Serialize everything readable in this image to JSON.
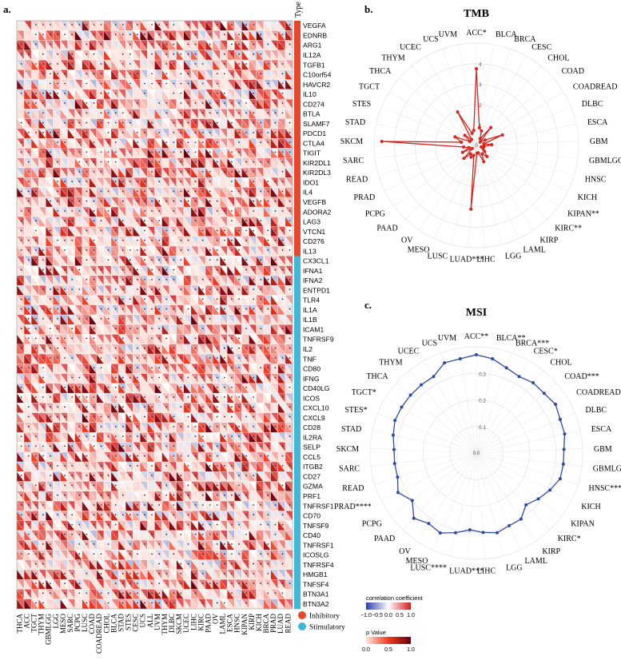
{
  "panel_labels": {
    "a": "a.",
    "b": "b.",
    "c": "c."
  },
  "heatmap": {
    "genes": [
      "VEGFA",
      "EDNRB",
      "ARG1",
      "IL12A",
      "TGFB1",
      "C10orf54",
      "HAVCR2",
      "IL10",
      "CD274",
      "BTLA",
      "SLAMF7",
      "PDCD1",
      "CTLA4",
      "TIGIT",
      "KIR2DL1",
      "KIR2DL3",
      "IDO1",
      "IL4",
      "VEGFB",
      "ADORA2",
      "LAG3",
      "VTCN1",
      "CD276",
      "IL13",
      "CX3CL1",
      "IFNA1",
      "IFNA2",
      "ENTPD1",
      "TLR4",
      "IL1A",
      "IL1B",
      "ICAM1",
      "TNFRSF9",
      "IL2",
      "TNF",
      "CD80",
      "IFNG",
      "CD40LG",
      "ICOS",
      "CXCL10",
      "CXCL9",
      "CD28",
      "IL2RA",
      "SELP",
      "CCL5",
      "ITGB2",
      "CD27",
      "GZMA",
      "PRF1",
      "TNFRSF1",
      "CD70",
      "TNFSF9",
      "CD40",
      "TNFRSF1",
      "ICOSLG",
      "TNFRSF4",
      "HMGB1",
      "TNFSF4",
      "BTN3A1",
      "BTN3A2"
    ],
    "gene_types": [
      "Inhibitory",
      "Inhibitory",
      "Inhibitory",
      "Inhibitory",
      "Inhibitory",
      "Inhibitory",
      "Inhibitory",
      "Inhibitory",
      "Inhibitory",
      "Inhibitory",
      "Inhibitory",
      "Inhibitory",
      "Inhibitory",
      "Inhibitory",
      "Inhibitory",
      "Inhibitory",
      "Inhibitory",
      "Inhibitory",
      "Inhibitory",
      "Inhibitory",
      "Inhibitory",
      "Inhibitory",
      "Inhibitory",
      "Inhibitory",
      "Stimulatory",
      "Stimulatory",
      "Stimulatory",
      "Stimulatory",
      "Stimulatory",
      "Stimulatory",
      "Stimulatory",
      "Stimulatory",
      "Stimulatory",
      "Stimulatory",
      "Stimulatory",
      "Stimulatory",
      "Stimulatory",
      "Stimulatory",
      "Stimulatory",
      "Stimulatory",
      "Stimulatory",
      "Stimulatory",
      "Stimulatory",
      "Stimulatory",
      "Stimulatory",
      "Stimulatory",
      "Stimulatory",
      "Stimulatory",
      "Stimulatory",
      "Stimulatory",
      "Stimulatory",
      "Stimulatory",
      "Stimulatory",
      "Stimulatory",
      "Stimulatory",
      "Stimulatory",
      "Stimulatory",
      "Stimulatory",
      "Stimulatory",
      "Stimulatory"
    ],
    "cancers": [
      "THCA",
      "ACC",
      "TGCT",
      "THYM",
      "GBMLGG",
      "LGG",
      "MESO",
      "SARC",
      "PCPG",
      "LUSC",
      "COAD",
      "COADREAD",
      "CHOL",
      "BLCA",
      "STAD",
      "STES",
      "CESC",
      "UCS",
      "ALL",
      "UVM",
      "THYM",
      "DLBC",
      "SKCM",
      "UCEC",
      "LIHC",
      "KIRC",
      "PAAD",
      "OV",
      "LAML",
      "ESCA",
      "HNSC",
      "KIPAN",
      "KIRP",
      "KICH",
      "BRCA",
      "PRAD",
      "LUAD",
      "READ"
    ],
    "type_header": "Type",
    "type_colors": {
      "Inhibitory": "#e8472b",
      "Stimulatory": "#3fb8d3"
    },
    "legend_types": [
      "Inhibitory",
      "Stimulatory"
    ],
    "legend_corr": {
      "title": "correlation coefficient",
      "ticks": [
        "−1.0",
        "−0.5",
        "0.0",
        "0.5",
        "1.0"
      ],
      "colors": [
        "#2b3fa8",
        "#ffffff",
        "#d7191c"
      ]
    },
    "legend_p": {
      "title": "p Value",
      "ticks": [
        "0.0",
        "0.5",
        "1.0"
      ],
      "colors": [
        "#fde5de",
        "#f03b20",
        "#67000d"
      ]
    }
  },
  "chart_data": [
    {
      "type": "radar",
      "title": "TMB",
      "categories": [
        "ACC*",
        "BLCA",
        "BRCA",
        "CESC",
        "CHOL",
        "COAD",
        "COADREAD",
        "DLBC",
        "ESCA",
        "GBM",
        "GBMLGG",
        "HNSC",
        "KICH",
        "KIPAN**",
        "KIRC**",
        "KIRP",
        "LAML",
        "LGG",
        "LIHC",
        "LUAD***",
        "LUSC",
        "MESO",
        "OV",
        "PAAD",
        "PCPG",
        "PRAD",
        "READ",
        "SARC",
        "SKCM",
        "STAD",
        "STES",
        "TGCT",
        "THCA",
        "THYM",
        "UCEC",
        "UCS",
        "UVM"
      ],
      "values": [
        3.0,
        0.7,
        0.6,
        0.3,
        0.9,
        0.2,
        0.4,
        1.1,
        0.3,
        0.6,
        0.3,
        0.2,
        0.3,
        0.4,
        0.6,
        0.4,
        0.7,
        0.3,
        0.3,
        2.5,
        0.4,
        0.5,
        0.4,
        0.7,
        0.2,
        0.6,
        0.3,
        0.5,
        3.7,
        0.6,
        0.9,
        0.3,
        0.6,
        0.3,
        1.5,
        0.5,
        0.6
      ],
      "rlim": [
        0,
        4
      ],
      "rticks": [
        "1",
        "2",
        "3",
        "4"
      ],
      "center_label": "0"
    },
    {
      "type": "radar",
      "title": "MSI",
      "categories": [
        "ACC**",
        "BLCA**",
        "BRCA***",
        "CESC*",
        "CHOL",
        "COAD***",
        "COADREAD***",
        "DLBC",
        "ESCA",
        "GBM",
        "GBMLGG**",
        "HNSC***",
        "KICH",
        "KIPAN",
        "KIRC*",
        "KIRP",
        "LAML",
        "LGG",
        "LIHC",
        "LUAD***",
        "LUSC****",
        "MESO",
        "OV",
        "PAAD",
        "PCPG",
        "PRAD****",
        "READ",
        "SARC",
        "SKCM",
        "STAD",
        "STES*",
        "TGCT*",
        "THCA",
        "THYM",
        "UCEC",
        "UCS",
        "UVM"
      ],
      "values": [
        0.37,
        0.36,
        0.34,
        0.33,
        0.34,
        0.34,
        0.35,
        0.34,
        0.34,
        0.33,
        0.33,
        0.33,
        0.31,
        0.29,
        0.27,
        0.3,
        0.3,
        0.31,
        0.3,
        0.29,
        0.31,
        0.33,
        0.32,
        0.34,
        0.3,
        0.33,
        0.31,
        0.31,
        0.31,
        0.32,
        0.33,
        0.33,
        0.33,
        0.33,
        0.33,
        0.36,
        0.36
      ],
      "rlim": [
        0,
        0.4
      ],
      "rticks": [
        "0.1",
        "0.2",
        "0.3"
      ],
      "center_label": "0.0"
    }
  ]
}
